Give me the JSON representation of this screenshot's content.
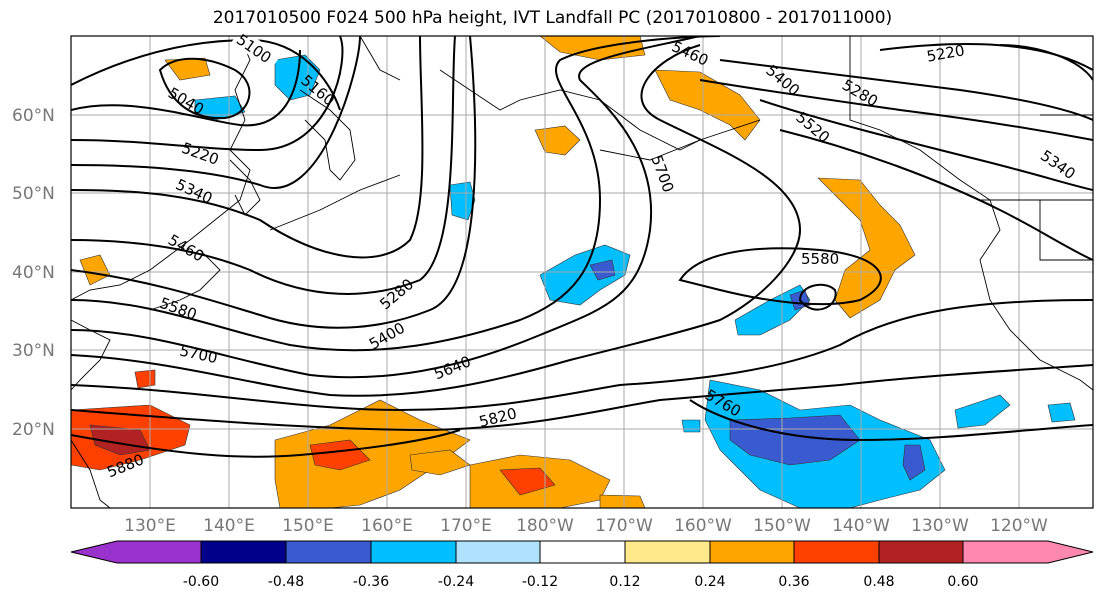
{
  "title": "2017010500 F024 500 hPa height, IVT Landfall PC (2017010800 - 2017011000)",
  "lat_labels": [
    "60°N",
    "50°N",
    "40°N",
    "30°N",
    "20°N"
  ],
  "lon_labels": [
    "130°E",
    "140°E",
    "150°E",
    "160°E",
    "170°E",
    "180°W",
    "170°W",
    "160°W",
    "150°W",
    "140°W",
    "130°W",
    "120°W"
  ],
  "contour_labels": [
    "5100",
    "5040",
    "5160",
    "5220",
    "5340",
    "5460",
    "5580",
    "5700",
    "5280",
    "5400",
    "5640",
    "5820",
    "5880",
    "5460",
    "5400",
    "5520",
    "5700",
    "5580",
    "5220",
    "5280",
    "5340",
    "5760"
  ],
  "colorbar": {
    "colors": [
      "#9a32cd",
      "#00008b",
      "#3a5bd0",
      "#00bfff",
      "#b0e2ff",
      "#ffffff",
      "#ffe98a",
      "#ffa500",
      "#ff4000",
      "#b22222",
      "#ff88b0"
    ],
    "tick_labels": [
      "-0.60",
      "-0.48",
      "-0.36",
      "-0.24",
      "-0.12",
      "0.12",
      "0.24",
      "0.36",
      "0.48",
      "0.60"
    ]
  }
}
